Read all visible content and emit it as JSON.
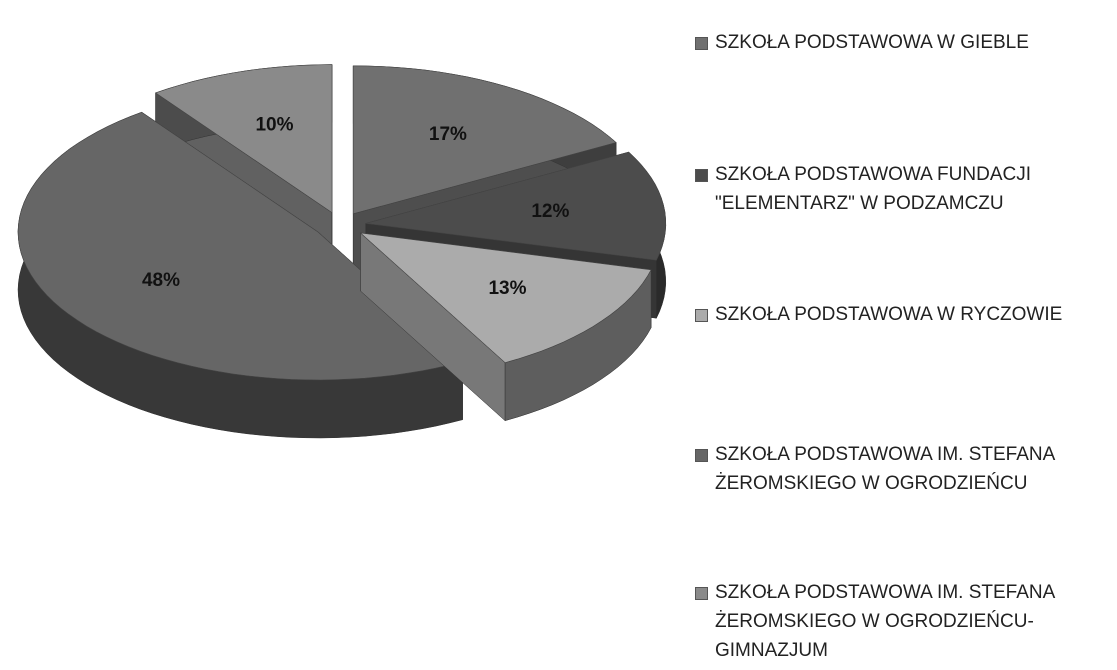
{
  "chart_data": {
    "type": "pie3d",
    "categories": [
      "SZKOŁA PODSTAWOWA W GIEBLE",
      "SZKOŁA PODSTAWOWA FUNDACJI \"ELEMENTARZ\" W PODZAMCZU",
      "SZKOŁA PODSTAWOWA W RYCZOWIE",
      "SZKOŁA PODSTAWOWA IM. STEFANA ŻEROMSKIEGO W OGRODZIEŃCU",
      "SZKOŁA PODSTAWOWA IM. STEFANA ŻEROMSKIEGO W OGRODZIEŃCU-GIMNAZJUM"
    ],
    "values": [
      17,
      12,
      13,
      48,
      10
    ],
    "value_labels": [
      "17%",
      "12%",
      "13%",
      "48%",
      "10%"
    ],
    "colors": [
      "#707070",
      "#4c4c4c",
      "#ababab",
      "#666666",
      "#8a8a8a"
    ],
    "legend": "right"
  }
}
